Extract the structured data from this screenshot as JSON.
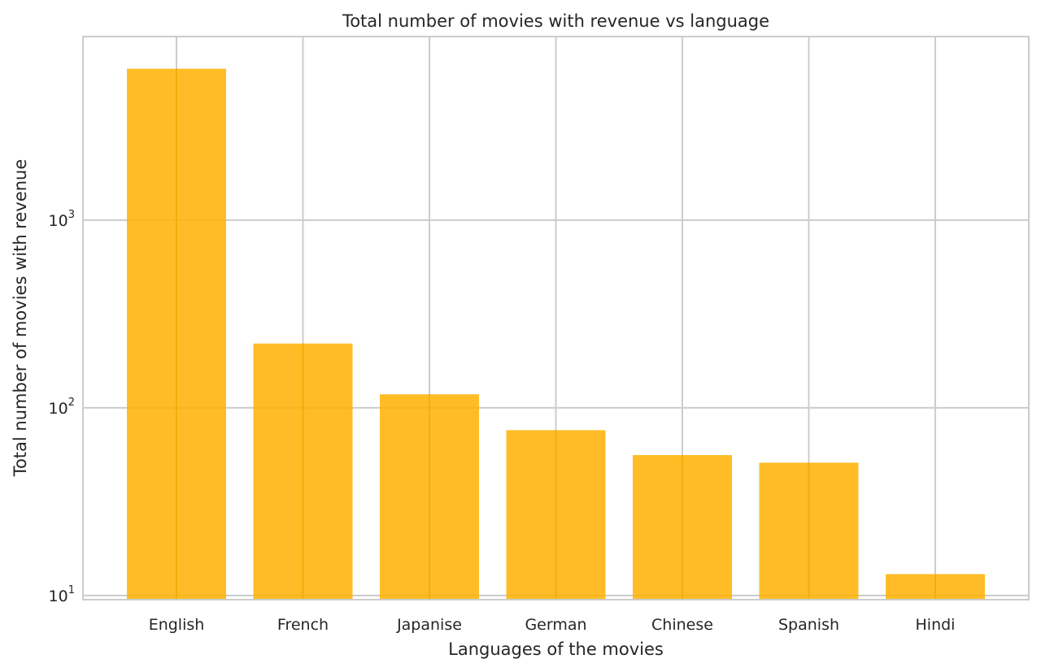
{
  "chart_data": {
    "type": "bar",
    "title": "Total number of movies with revenue vs language",
    "xlabel": "Languages of the movies",
    "ylabel": "Total number of movies with revenue",
    "categories": [
      "English",
      "French",
      "Japanise",
      "German",
      "Chinese",
      "Spanish",
      "Hindi"
    ],
    "values": [
      6400,
      220,
      118,
      76,
      56,
      51,
      13
    ],
    "yscale": "log",
    "ylim": [
      9.5,
      9500
    ],
    "y_ticks": [
      {
        "value": 10,
        "base": "10",
        "exp": "1"
      },
      {
        "value": 100,
        "base": "10",
        "exp": "2"
      },
      {
        "value": 1000,
        "base": "10",
        "exp": "3"
      }
    ],
    "grid": true,
    "bar_color": "#ffb000",
    "bar_opacity": 0.85,
    "grid_color": "#cccccc",
    "background": "#ffffff"
  }
}
